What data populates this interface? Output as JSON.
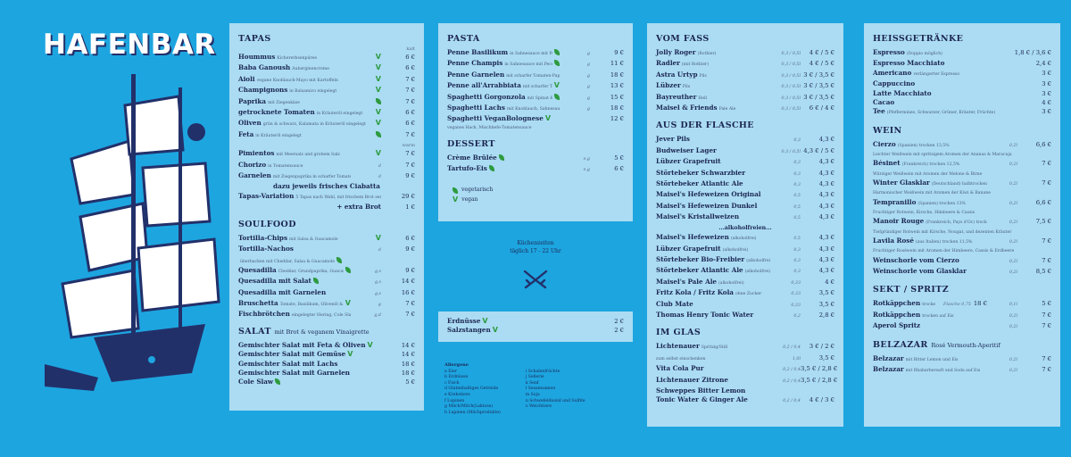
{
  "brand": {
    "title": "HAFENBAR",
    "ship_icon": "ship-logo-icon",
    "bg_color": "#1da5e0",
    "panel_color": "#abdcf3",
    "ink_color": "#1c2652",
    "leaf_color": "#2e9a3f"
  },
  "tapas": {
    "title": "TAPAS",
    "note_top": "kalt",
    "items": [
      {
        "name": "Hoummus",
        "desc": "Kichererbsenpüree",
        "price": "6 €",
        "tag": "vegan"
      },
      {
        "name": "Baba Ganoush",
        "desc": "Auberginencreme",
        "price": "6 €",
        "tag": "vegan"
      },
      {
        "name": "Aioli",
        "desc": "vegane Knoblauch-Mayo mit Kartoffeln",
        "price": "7 €",
        "tag": "vegan"
      },
      {
        "name": "Champignons",
        "desc": "in Balsamico eingelegt",
        "price": "7 €",
        "tag": "vegan"
      },
      {
        "name": "Paprika",
        "desc": "mit Ziegenkäse",
        "price": "7 €",
        "tag": "veg"
      },
      {
        "name": "getrocknete Tomaten",
        "desc": "in Kräuteröl eingelegt",
        "price": "6 €",
        "tag": "vegan"
      },
      {
        "name": "Oliven",
        "desc": "grün & schwarz, Kalamata in Kräuteröl eingelegt",
        "price": "6 €",
        "tag": "vegan"
      },
      {
        "name": "Feta",
        "desc": "in Kräuteröl eingelegt",
        "price": "7 €",
        "tag": "veg"
      }
    ],
    "note_mid": "warm",
    "warm_items": [
      {
        "name": "Pimientos",
        "desc": "mit Meersalz und grobem Salz",
        "price": "7 €",
        "tag": "vegan"
      },
      {
        "name": "Chorizo",
        "desc": "in Tomatensauce",
        "size": "d",
        "price": "7 €",
        "tag": ""
      },
      {
        "name": "Garnelen",
        "desc": "mit Ziegenpaprika in scharfer Tomatensauce",
        "size": "d",
        "price": "9 €",
        "tag": ""
      }
    ],
    "bread_line": "dazu jeweils frisches Ciabatta",
    "variation": {
      "name": "Tapas-Variation",
      "desc": "5 Tapas nach Wahl, mit frischem Brot serviert",
      "price": "29 €"
    },
    "extra": {
      "name": "+ extra Brot",
      "price": "1 €"
    }
  },
  "soulfood": {
    "title": "SOULFOOD",
    "items": [
      {
        "name": "Tortilla-Chips",
        "desc": "mit Salsa & Guacamole",
        "price": "6 €",
        "tag": "vegan"
      },
      {
        "name": "Tortilla-Nachos",
        "desc": "",
        "size": "d",
        "price": "9 €",
        "tag": ""
      },
      {
        "name": "",
        "desc": "überbacken mit Cheddar, Salsa & Guacamole",
        "price": "",
        "tag": "veg"
      },
      {
        "name": "Quesadilla",
        "desc": "Cheddar, Grundpaprika, Guacamole",
        "size": "g,s",
        "price": "9 €",
        "tag": "veg"
      },
      {
        "name": "Quesadilla mit Salat",
        "desc": "",
        "size": "g,s",
        "price": "14 €",
        "tag": "veg"
      },
      {
        "name": "Quesadilla mit Garnelen",
        "desc": "",
        "size": "g,s",
        "price": "16 €",
        "tag": ""
      },
      {
        "name": "Bruschetta",
        "desc": "Tomate, Basilikum, Olivenöl & frische Petersilie",
        "size": "g",
        "price": "7 €",
        "tag": "vegan"
      },
      {
        "name": "Fischbrötchen",
        "desc": "eingelegter Hering, Cole Slaw & Zwiebel",
        "size": "g,d",
        "price": "7 €",
        "tag": ""
      }
    ]
  },
  "salat": {
    "title": "SALAT",
    "title_note": "mit Brot & veganem Vinaigrette",
    "items": [
      {
        "name": "Gemischter Salat mit Feta & Oliven",
        "price": "14 €",
        "tag": "vegan"
      },
      {
        "name": "Gemischter Salat mit Gemüse",
        "price": "14 €",
        "tag": "vegan"
      },
      {
        "name": "Gemischter Salat mit Lachs",
        "price": "18 €",
        "tag": ""
      },
      {
        "name": "Gemischter Salat mit Garnelen",
        "price": "18 €",
        "tag": ""
      },
      {
        "name": "Cole Slaw",
        "price": "5 €",
        "tag": "veg"
      }
    ]
  },
  "pasta": {
    "title": "PASTA",
    "items": [
      {
        "name": "Penne Basilikum",
        "desc": "in Sahnesauce mit Pecorino",
        "size": "g",
        "price": "9 €",
        "tag": "veg"
      },
      {
        "name": "Penne Champis",
        "desc": "in Sahnesauce mit Pecorino",
        "size": "g",
        "price": "11 €",
        "tag": "veg"
      },
      {
        "name": "Penne Garnelen",
        "desc": "mit scharfer Tomaten-Paprika-Sauce",
        "size": "g",
        "price": "18 €",
        "tag": ""
      },
      {
        "name": "Penne all'Arrabbiata",
        "desc": "mit scharfer Tomaten-Paprika-Sauce",
        "size": "g",
        "price": "13 €",
        "tag": "vegan"
      },
      {
        "name": "Spaghetti Gorgonzola",
        "desc": "mit Spinat & Sahnesauce",
        "size": "g",
        "price": "15 €",
        "tag": "veg"
      },
      {
        "name": "Spaghetti Lachs",
        "desc": "mit Knoblauch, Sahnesauce & Zitrone",
        "size": "g",
        "price": "18 €",
        "tag": ""
      },
      {
        "name": "Spaghetti VeganBolognese",
        "desc": "",
        "size": "",
        "price": "12 €",
        "tag": "vegan"
      }
    ],
    "bolognese_note": "veganes Hack, Mischhefe-Tomatensauce"
  },
  "dessert": {
    "title": "DESSERT",
    "items": [
      {
        "name": "Crème Brûlée",
        "size": "e,g",
        "price": "5 €",
        "tag": "veg"
      },
      {
        "name": "Tartufo-Eis",
        "size": "e,g",
        "price": "6 €",
        "tag": "veg"
      }
    ],
    "legend": [
      {
        "icon": "leaf-icon",
        "label": "vegetarisch"
      },
      {
        "icon": "vegan-v-icon",
        "label": "vegan"
      }
    ]
  },
  "kitchen": {
    "title": "Küchenzeiten",
    "hours": "täglich 17 - 22 Uhr",
    "icon": "crossed-swords-icon"
  },
  "snacks": {
    "items": [
      {
        "name": "Erdnüsse",
        "size": "",
        "price": "2 €",
        "tag": "vegan"
      },
      {
        "name": "Salzstangen",
        "size": "",
        "price": "2 €",
        "tag": "vegan"
      }
    ]
  },
  "allergens": {
    "title": "Allergene",
    "col1": [
      "a Eier",
      "b Erdnüsse",
      "c Fisch",
      "d Glutenhaltiges Getreide",
      "e Krebstiere",
      "f Lupinen",
      "g Milch/Milch(Laktose)",
      "h Lupinen (Milchprodukte)"
    ],
    "col2": [
      "i Schalenfrüchte",
      "j Sellerie",
      "k Senf",
      "l Sesamsamen",
      "m Soja",
      "n Schwefeldioxid und Sulfite",
      "o Weichtiere"
    ]
  },
  "vom_fass": {
    "title": "VOM FASS",
    "items": [
      {
        "name": "Jolly Roger",
        "desc": "(Rotbier)",
        "size": "0,3 / 0,5l",
        "price": "4 € / 5 €"
      },
      {
        "name": "Radler",
        "desc": "(mit Rotbier)",
        "size": "0,3 / 0,5l",
        "price": "4 € / 5 €"
      },
      {
        "name": "Astra Urtyp",
        "desc": "Pils",
        "size": "0,3 / 0,5l",
        "price": "3 € / 3,5 €"
      },
      {
        "name": "Lübzer",
        "desc": "Pils",
        "size": "0,3 / 0,5l",
        "price": "3 € / 3,5 €"
      },
      {
        "name": "Bayreuther",
        "desc": "Hell",
        "size": "0,3 / 0,5l",
        "price": "3 € / 3,5 €"
      },
      {
        "name": "Maisel & Friends",
        "desc": "Pale Ale",
        "size": "0,3 / 0,5l",
        "price": "6 € / 4 €"
      }
    ]
  },
  "aus_der_flasche": {
    "title": "AUS DER FLASCHE",
    "items": [
      {
        "name": "Jever Pils",
        "desc": "",
        "size": "0,3",
        "price": "4,3 €"
      },
      {
        "name": "Budweiser Lager",
        "desc": "",
        "size": "0,3 / 0,5l",
        "price": "4,3 € / 5 €"
      },
      {
        "name": "Lübzer Grapefruit",
        "desc": "",
        "size": "0,3",
        "price": "4,3 €"
      },
      {
        "name": "Störtebeker Schwarzbier",
        "desc": "",
        "size": "0,3",
        "price": "4,3 €"
      },
      {
        "name": "Störtebeker Atlantic Ale",
        "desc": "",
        "size": "0,3",
        "price": "4,3 €"
      },
      {
        "name": "Maisel's Hefeweizen Original",
        "desc": "",
        "size": "0,5",
        "price": "4,3 €"
      },
      {
        "name": "Maisel's Hefeweizen Dunkel",
        "desc": "",
        "size": "0,5",
        "price": "4,3 €"
      },
      {
        "name": "Maisel's Kristallweizen",
        "desc": "",
        "size": "0,5",
        "price": "4,3 €"
      }
    ],
    "divider": "...alkoholfreien...",
    "af_items": [
      {
        "name": "Maisel's Hefeweizen",
        "desc": "(alkoholfrei)",
        "size": "0,5",
        "price": "4,3 €"
      },
      {
        "name": "Lübzer Grapefruit",
        "desc": "(alkoholfrei)",
        "size": "0,3",
        "price": "4,3 €"
      },
      {
        "name": "Störtebeker Bio-Freibier",
        "desc": "(alkoholfrei)",
        "size": "0,3",
        "price": "4,3 €"
      },
      {
        "name": "Störtebeker Atlantic Ale",
        "desc": "(alkoholfrei)",
        "size": "0,3",
        "price": "4,3 €"
      },
      {
        "name": "Maisel's Pale Ale",
        "desc": "(alkoholfrei)",
        "size": "0,33",
        "price": "4 €"
      },
      {
        "name": "Fritz Kola / Fritz Kola",
        "desc": "ohne Zucker",
        "size": "0,33",
        "price": "3,5 €"
      },
      {
        "name": "Club Mate",
        "desc": "",
        "size": "0,33",
        "price": "3,5 €"
      },
      {
        "name": "Thomas Henry Tonic Water",
        "desc": "",
        "size": "0,2",
        "price": "2,8 €"
      }
    ]
  },
  "im_glas": {
    "title": "IM GLAS",
    "items": [
      {
        "name": "Lichtenauer",
        "desc": "Spritzig/Still",
        "size": "0,2 / 0,4",
        "price": "3 € / 2 €"
      },
      {
        "name": "",
        "desc": "zum selbst einschenken",
        "size": "1,0l",
        "price": "3,5 €"
      },
      {
        "name": "Vita Cola Pur",
        "desc": "",
        "size": "0,2 / 0,4",
        "price": "3,5 € / 2,8 €"
      },
      {
        "name": "Lichtenauer Zitrone",
        "desc": "",
        "size": "0,2 / 0,4",
        "price": "3,5 € / 2,8 €"
      },
      {
        "name": "Schweppes Bitter Lemon",
        "desc": "",
        "size": "",
        "price": ""
      },
      {
        "name": "Tonic Water",
        "desc": "& Ginger Ale",
        "size": "0,2 / 0,4",
        "price": "4 € / 3 €"
      }
    ]
  },
  "heissgetraenke": {
    "title": "HEISSGETRÄNKE",
    "items": [
      {
        "name": "Espresso",
        "desc": "(Doppio möglich)",
        "price": "1,8 € / 3,6 €"
      },
      {
        "name": "Espresso Macchiato",
        "desc": "",
        "price": "2,4 €"
      },
      {
        "name": "Americano",
        "desc": "verlängerter Espresso",
        "price": "3 €"
      },
      {
        "name": "Cappuccino",
        "desc": "",
        "price": "3 €"
      },
      {
        "name": "Latte Macchiato",
        "desc": "",
        "price": "3 €"
      },
      {
        "name": "Cacao",
        "desc": "",
        "price": "4 €"
      },
      {
        "name": "Tee",
        "desc": "(Pfefferminze, Schwarzer, Grüner, Kräuter, Früchte)",
        "price": "3 €"
      }
    ]
  },
  "wein": {
    "title": "WEIN",
    "items": [
      {
        "name": "Cierzo",
        "desc": "(Spanien) trocken 13,5%",
        "sub": "Leichter Weißwein mit spritzigem Aromen der Ananas & Maracuja",
        "size": "0,2l",
        "price": "6,6 €"
      },
      {
        "name": "Bésinet",
        "desc": "(Frankreich) trocken 12,5%",
        "sub": "Würziger Weißwein mit Aromen der Melone & Birne",
        "size": "0,2l",
        "price": "7 €"
      },
      {
        "name": "Winter Glasklar",
        "desc": "(Deutschland) halbtrocken 11%",
        "sub": "Harmonischer Weißwein mit Aromen der Kiwi & Banane",
        "size": "0,2l",
        "price": "7 €"
      },
      {
        "name": "Tempranillo",
        "desc": "(Spanien) trocken 13%",
        "sub": "Fruchtiger Rotwein, Kirsche, Himbeere & Cassis",
        "size": "0,2l",
        "price": "6,6 €"
      },
      {
        "name": "Manoir Rouge",
        "desc": "(Frankreich, Pays d'Oc) trocken 13,5%",
        "sub": "Tiefgründiger Rotwein mit Kirsche, Nougat, und dezenten Kräuter",
        "size": "0,2l",
        "price": "7,5 €"
      },
      {
        "name": "Lavila Rosé",
        "desc": "(aus Italien) trocken 11,5%",
        "sub": "Fruchtiger Roséwein mit Aromen der Himbeere, Cassis & Erdbeere",
        "size": "0,2l",
        "price": "7 €"
      },
      {
        "name": "Weinschorle vom Cierzo",
        "desc": "",
        "sub": "",
        "size": "0,2l",
        "price": "7 €"
      },
      {
        "name": "Weinschorle vom Glasklar",
        "desc": "",
        "sub": "",
        "size": "0,2l",
        "price": "8,5 €"
      }
    ]
  },
  "sekt": {
    "title": "SEKT / SPRITZ",
    "items": [
      {
        "name": "Rotkäppchen",
        "desc": "trocken",
        "size": "Flasche 0,75",
        "price": "18 €",
        "size2": "0,1l",
        "price2": "5 €"
      },
      {
        "name": "Rotkäppchen",
        "desc": "trocken auf Eis",
        "size": "",
        "price": "",
        "size2": "0,2l",
        "price2": "7 €"
      },
      {
        "name": "Aperol Spritz",
        "desc": "",
        "size": "",
        "price": "",
        "size2": "0,2l",
        "price2": "7 €"
      }
    ]
  },
  "belzazar": {
    "title": "BELZAZAR",
    "title_note": "Rosé Vermouth-Aperitif",
    "items": [
      {
        "name": "Belzazar",
        "desc": "mit Bitter Lemon und Eis",
        "size": "0,2l",
        "price": "7 €"
      },
      {
        "name": "Belzazar",
        "desc": "mit Rhabarbersaft und Soda auf Eis",
        "size": "0,2l",
        "price": "7 €"
      }
    ]
  }
}
